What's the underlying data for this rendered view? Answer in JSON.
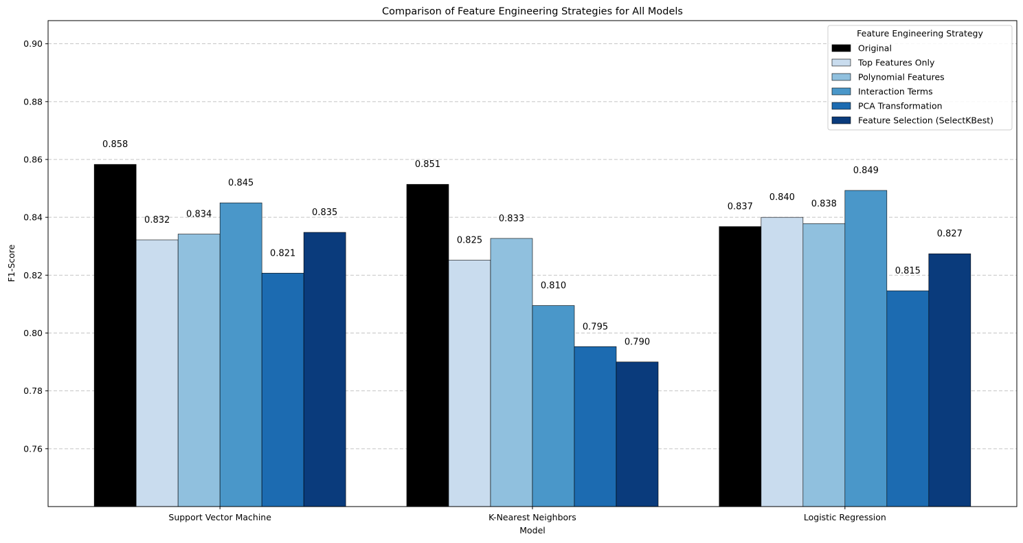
{
  "chart_data": {
    "type": "bar",
    "title": "Comparison of Feature Engineering Strategies for All Models",
    "xlabel": "Model",
    "ylabel": "F1-Score",
    "ylim": [
      0.74,
      0.908
    ],
    "yticks": [
      0.76,
      0.78,
      0.8,
      0.82,
      0.84,
      0.86,
      0.88,
      0.9
    ],
    "ytick_labels": [
      "0.76",
      "0.78",
      "0.80",
      "0.82",
      "0.84",
      "0.86",
      "0.88",
      "0.90"
    ],
    "grid": "y-dashed",
    "legend": {
      "title": "Feature Engineering Strategy",
      "placement": "top-right"
    },
    "categories": [
      "Support Vector Machine",
      "K-Nearest Neighbors",
      "Logistic Regression"
    ],
    "series": [
      {
        "name": "Original",
        "color": "#000000",
        "values": [
          0.8583,
          0.8514,
          0.8368
        ],
        "labels": [
          "0.858",
          "0.851",
          "0.837"
        ]
      },
      {
        "name": "Top Features Only",
        "color": "#c9dcee",
        "values": [
          0.8322,
          0.8252,
          0.84
        ],
        "labels": [
          "0.832",
          "0.825",
          "0.840"
        ]
      },
      {
        "name": "Polynomial Features",
        "color": "#90c0de",
        "values": [
          0.8342,
          0.8327,
          0.8378
        ],
        "labels": [
          "0.834",
          "0.833",
          "0.838"
        ]
      },
      {
        "name": "Interaction Terms",
        "color": "#4a97c9",
        "values": [
          0.845,
          0.8095,
          0.8493
        ],
        "labels": [
          "0.845",
          "0.810",
          "0.849"
        ]
      },
      {
        "name": "PCA Transformation",
        "color": "#1c6bb1",
        "values": [
          0.8207,
          0.7953,
          0.8146
        ],
        "labels": [
          "0.821",
          "0.795",
          "0.815"
        ]
      },
      {
        "name": "Feature Selection (SelectKBest)",
        "color": "#0a3b7c",
        "values": [
          0.8348,
          0.79,
          0.8274
        ],
        "labels": [
          "0.835",
          "0.790",
          "0.827"
        ]
      }
    ]
  }
}
